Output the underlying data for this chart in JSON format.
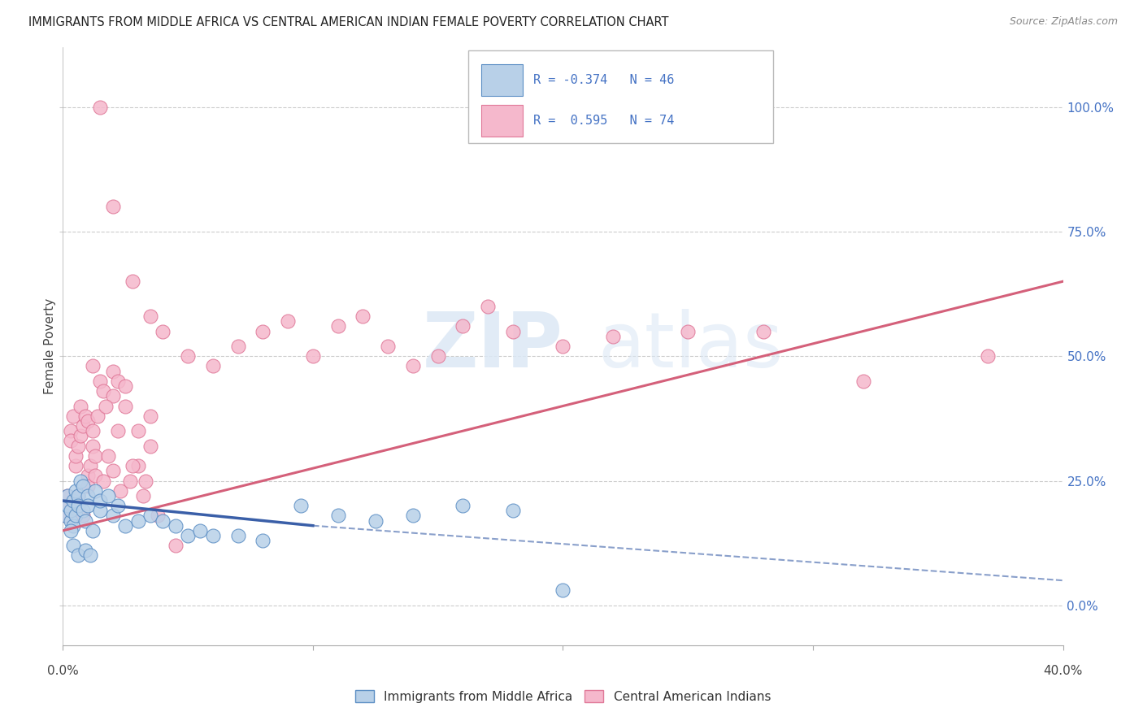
{
  "title": "IMMIGRANTS FROM MIDDLE AFRICA VS CENTRAL AMERICAN INDIAN FEMALE POVERTY CORRELATION CHART",
  "source": "Source: ZipAtlas.com",
  "ylabel": "Female Poverty",
  "ytick_values": [
    0,
    25,
    50,
    75,
    100
  ],
  "color_blue_fill": "#b8d0e8",
  "color_pink_fill": "#f5b8cc",
  "color_blue_edge": "#5b8ec4",
  "color_pink_edge": "#e07898",
  "color_blue_line": "#3a5fa8",
  "color_pink_line": "#d4607a",
  "color_text_blue": "#4472c4",
  "background_color": "#ffffff",
  "grid_color": "#cccccc",
  "xlim": [
    0,
    40
  ],
  "ylim": [
    -8,
    112
  ],
  "blue_scatter_x": [
    0.1,
    0.2,
    0.2,
    0.3,
    0.3,
    0.4,
    0.4,
    0.5,
    0.5,
    0.6,
    0.6,
    0.7,
    0.8,
    0.8,
    0.9,
    1.0,
    1.0,
    1.2,
    1.3,
    1.5,
    1.5,
    1.8,
    2.0,
    2.2,
    2.5,
    3.0,
    3.5,
    4.0,
    4.5,
    5.0,
    5.5,
    6.0,
    7.0,
    8.0,
    9.5,
    11.0,
    12.5,
    14.0,
    16.0,
    18.0,
    20.0,
    0.3,
    0.4,
    0.6,
    0.9,
    1.1
  ],
  "blue_scatter_y": [
    18,
    20,
    22,
    17,
    19,
    21,
    16,
    23,
    18,
    22,
    20,
    25,
    19,
    24,
    17,
    22,
    20,
    15,
    23,
    19,
    21,
    22,
    18,
    20,
    16,
    17,
    18,
    17,
    16,
    14,
    15,
    14,
    14,
    13,
    20,
    18,
    17,
    18,
    20,
    19,
    3,
    15,
    12,
    10,
    11,
    10
  ],
  "pink_scatter_x": [
    0.1,
    0.2,
    0.2,
    0.3,
    0.3,
    0.4,
    0.5,
    0.5,
    0.6,
    0.7,
    0.7,
    0.8,
    0.9,
    1.0,
    1.0,
    1.1,
    1.2,
    1.2,
    1.3,
    1.4,
    1.5,
    1.6,
    1.8,
    2.0,
    2.0,
    2.2,
    2.5,
    2.5,
    3.0,
    3.0,
    3.5,
    3.5,
    4.0,
    5.0,
    6.0,
    7.0,
    8.0,
    9.0,
    10.0,
    11.0,
    12.0,
    13.0,
    14.0,
    15.0,
    16.0,
    17.0,
    18.0,
    20.0,
    22.0,
    25.0,
    28.0,
    32.0,
    37.0,
    0.4,
    0.6,
    0.8,
    1.0,
    1.3,
    1.6,
    2.0,
    2.3,
    2.7,
    3.2,
    3.8,
    4.5,
    1.5,
    2.0,
    2.8,
    3.5,
    1.2,
    1.7,
    2.2,
    2.8,
    3.3
  ],
  "pink_scatter_y": [
    18,
    22,
    20,
    35,
    33,
    38,
    28,
    30,
    32,
    34,
    40,
    36,
    38,
    37,
    26,
    28,
    32,
    35,
    30,
    38,
    45,
    43,
    30,
    42,
    47,
    45,
    40,
    44,
    35,
    28,
    32,
    38,
    55,
    50,
    48,
    52,
    55,
    57,
    50,
    56,
    58,
    52,
    48,
    50,
    56,
    60,
    55,
    52,
    54,
    55,
    55,
    45,
    50,
    20,
    22,
    18,
    24,
    26,
    25,
    27,
    23,
    25,
    22,
    18,
    12,
    100,
    80,
    65,
    58,
    48,
    40,
    35,
    28,
    25
  ],
  "blue_line_x": [
    0,
    10,
    40
  ],
  "blue_line_y": [
    21,
    16,
    5
  ],
  "blue_solid_end_x": 10,
  "blue_solid_end_y": 16,
  "pink_line_x": [
    0,
    40
  ],
  "pink_line_y": [
    15,
    65
  ],
  "legend_entries": [
    {
      "r_text": "R = -0.374",
      "n_text": "N = 46"
    },
    {
      "r_text": "R =  0.595",
      "n_text": "N = 74"
    }
  ],
  "bottom_legend": [
    "Immigrants from Middle Africa",
    "Central American Indians"
  ]
}
